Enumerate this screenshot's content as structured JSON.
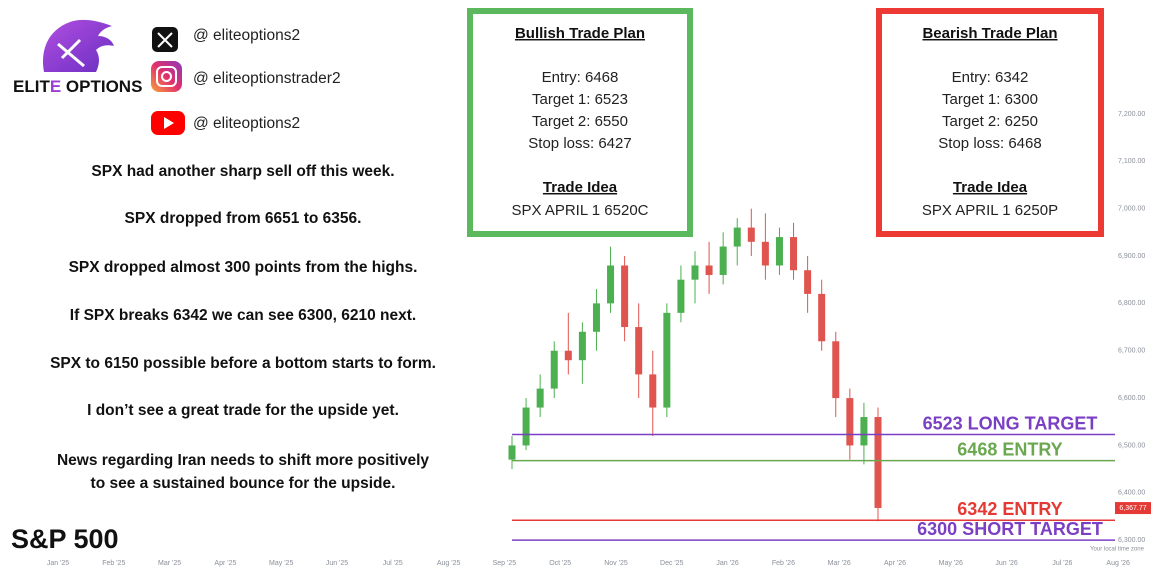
{
  "header": {
    "brand_left": "ELIT",
    "brand_mid": "E",
    "brand_right": " OPTIONS",
    "socials": [
      "@ eliteoptions2",
      "@ eliteoptionstrader2",
      "@ eliteoptions2"
    ]
  },
  "paragraphs": [
    [
      "SPX had another sharp sell off this week."
    ],
    [
      "SPX dropped from 6651 to 6356."
    ],
    [
      "SPX dropped almost 300 points from the highs."
    ],
    [
      "If SPX breaks 6342 we can see 6300, 6210 next."
    ],
    [
      "SPX to 6150 possible before a bottom starts to form."
    ],
    [
      "I don’t see a great trade for the upside yet."
    ],
    [
      "News regarding Iran needs to shift more positively",
      "to see a sustained bounce for the upside."
    ]
  ],
  "footer": "S&P 500",
  "bullish": {
    "title": "Bullish Trade Plan",
    "lines": [
      "Entry: 6468",
      "Target 1: 6523",
      "Target 2: 6550",
      "Stop loss: 6427"
    ],
    "idea_title": "Trade Idea",
    "idea": "SPX APRIL 1 6520C"
  },
  "bearish": {
    "title": "Bearish Trade Plan",
    "lines": [
      "Entry: 6342",
      "Target 1: 6300",
      "Target 2: 6250",
      "Stop loss: 6468"
    ],
    "idea_title": "Trade Idea",
    "idea": "SPX APRIL 1  6250P"
  },
  "chart": {
    "type": "candlestick",
    "ylim": [
      6294,
      7240
    ],
    "yticks": [
      {
        "value": 6300,
        "label": "6,300.00"
      },
      {
        "value": 6400,
        "label": "6,400.00"
      },
      {
        "value": 6500,
        "label": "6,500.00"
      },
      {
        "value": 6600,
        "label": "6,600.00"
      },
      {
        "value": 6700,
        "label": "6,700.00"
      },
      {
        "value": 6800,
        "label": "6,800.00"
      },
      {
        "value": 6900,
        "label": "6,900.00"
      },
      {
        "value": 7000,
        "label": "7,000.00"
      },
      {
        "value": 7100,
        "label": "7,100.00"
      },
      {
        "value": 7200,
        "label": "7,200.00"
      }
    ],
    "categories": [
      "Jan '25",
      "Feb '25",
      "Mar '25",
      "Apr '25",
      "May '25",
      "Jun '25",
      "Jul '25",
      "Aug '25",
      "Sep '25",
      "Oct '25",
      "Nov '25",
      "Dec '25",
      "Jan '26",
      "Feb '26",
      "Mar '26",
      "Apr '26",
      "May '26",
      "Jun '26",
      "Jul '26",
      "Aug '26"
    ],
    "up_color": "#4caf50",
    "down_color": "#e0544f",
    "candles": [
      [
        6470,
        6520,
        6450,
        6500
      ],
      [
        6500,
        6600,
        6490,
        6580
      ],
      [
        6580,
        6650,
        6560,
        6620
      ],
      [
        6620,
        6720,
        6600,
        6700
      ],
      [
        6700,
        6780,
        6650,
        6680
      ],
      [
        6680,
        6760,
        6630,
        6740
      ],
      [
        6740,
        6830,
        6700,
        6800
      ],
      [
        6800,
        6920,
        6780,
        6880
      ],
      [
        6880,
        6900,
        6720,
        6750
      ],
      [
        6750,
        6800,
        6600,
        6650
      ],
      [
        6650,
        6700,
        6520,
        6580
      ],
      [
        6580,
        6800,
        6560,
        6780
      ],
      [
        6780,
        6880,
        6760,
        6850
      ],
      [
        6850,
        6910,
        6800,
        6880
      ],
      [
        6880,
        6930,
        6820,
        6860
      ],
      [
        6860,
        6950,
        6840,
        6920
      ],
      [
        6920,
        6980,
        6880,
        6960
      ],
      [
        6960,
        7000,
        6900,
        6930
      ],
      [
        6930,
        6990,
        6850,
        6880
      ],
      [
        6880,
        6960,
        6860,
        6940
      ],
      [
        6940,
        6970,
        6850,
        6870
      ],
      [
        6870,
        6900,
        6780,
        6820
      ],
      [
        6820,
        6850,
        6700,
        6720
      ],
      [
        6720,
        6740,
        6560,
        6600
      ],
      [
        6600,
        6620,
        6470,
        6500
      ],
      [
        6500,
        6590,
        6460,
        6560
      ],
      [
        6560,
        6580,
        6340,
        6368
      ]
    ],
    "levels": [
      {
        "value": 6523,
        "label": "6523 LONG TARGET",
        "color": "#7b3fc4"
      },
      {
        "value": 6468,
        "label": "6468 ENTRY",
        "color": "#6aa84f"
      },
      {
        "value": 6342,
        "label": "6342 ENTRY",
        "color": "#e53935"
      },
      {
        "value": 6300,
        "label": "6300 SHORT TARGET",
        "color": "#7b3fc4"
      }
    ],
    "price_tag": {
      "value": 6367.77,
      "label": "6,367.77"
    },
    "timezone_note": "Your local time zone"
  }
}
